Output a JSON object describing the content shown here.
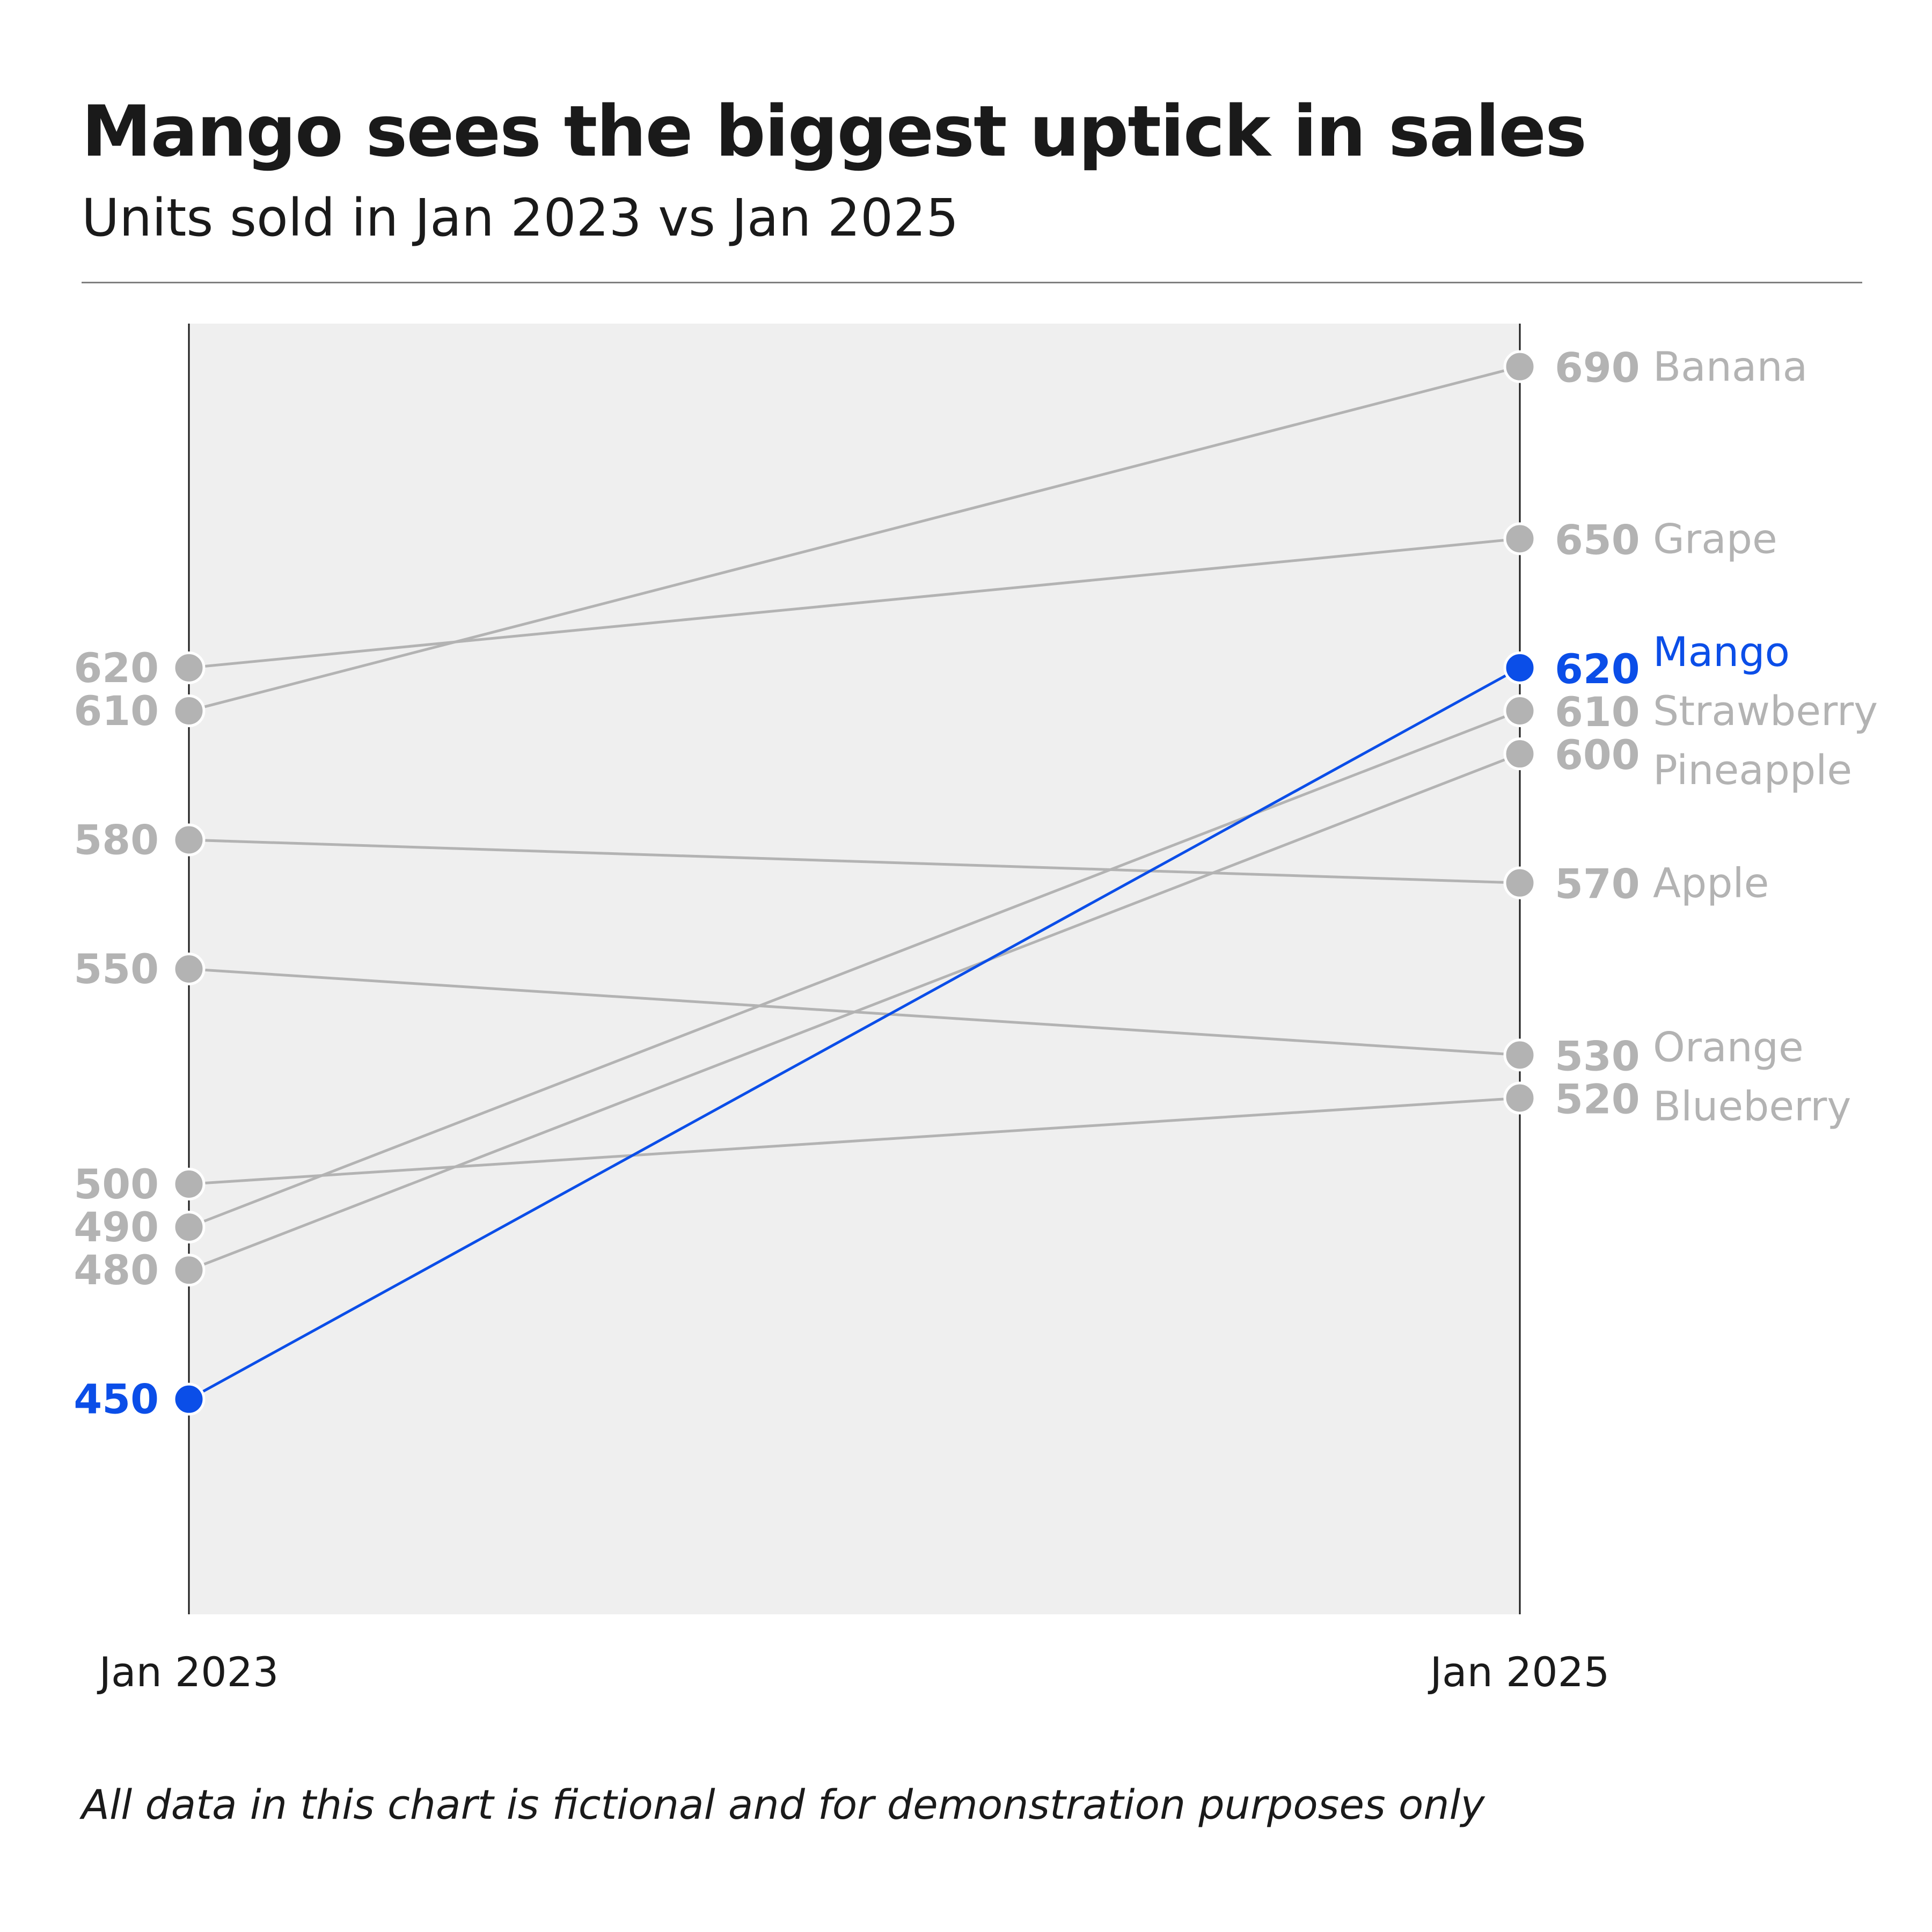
{
  "title": "Mango sees the biggest uptick in sales",
  "subtitle": "Units sold in Jan 2023 vs Jan 2025",
  "footnote": "All data in this chart is fictional and for demonstration purposes only",
  "colors": {
    "highlight": "#0b4ee8",
    "muted": "#b3b3b3",
    "panel": "#efefef",
    "axis": "#1a1a1a"
  },
  "chart_data": {
    "type": "line",
    "x": [
      "Jan 2023",
      "Jan 2025"
    ],
    "ylim": [
      400,
      700
    ],
    "grid": false,
    "highlight_series": "Mango",
    "series": [
      {
        "name": "Banana",
        "values": [
          610,
          690
        ]
      },
      {
        "name": "Grape",
        "values": [
          620,
          650
        ]
      },
      {
        "name": "Mango",
        "values": [
          450,
          620
        ]
      },
      {
        "name": "Strawberry",
        "values": [
          490,
          610
        ]
      },
      {
        "name": "Pineapple",
        "values": [
          480,
          600
        ]
      },
      {
        "name": "Apple",
        "values": [
          580,
          570
        ]
      },
      {
        "name": "Orange",
        "values": [
          550,
          530
        ]
      },
      {
        "name": "Blueberry",
        "values": [
          500,
          520
        ]
      }
    ]
  }
}
